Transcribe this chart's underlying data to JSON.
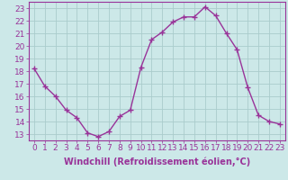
{
  "x": [
    0,
    1,
    2,
    3,
    4,
    5,
    6,
    7,
    8,
    9,
    10,
    11,
    12,
    13,
    14,
    15,
    16,
    17,
    18,
    19,
    20,
    21,
    22,
    23
  ],
  "y": [
    18.2,
    16.8,
    16.0,
    14.9,
    14.3,
    13.1,
    12.8,
    13.2,
    14.4,
    14.9,
    18.3,
    20.5,
    21.1,
    21.9,
    22.3,
    22.3,
    23.1,
    22.4,
    21.0,
    19.7,
    16.7,
    14.5,
    14.0,
    13.8
  ],
  "line_color": "#993399",
  "marker": "+",
  "marker_color": "#993399",
  "marker_size": 4,
  "xlabel": "Windchill (Refroidissement éolien,°C)",
  "xlabel_fontsize": 7,
  "xtick_labels": [
    "0",
    "1",
    "2",
    "3",
    "4",
    "5",
    "6",
    "7",
    "8",
    "9",
    "10",
    "11",
    "12",
    "13",
    "14",
    "15",
    "16",
    "17",
    "18",
    "19",
    "20",
    "21",
    "22",
    "23"
  ],
  "ytick_labels": [
    "13",
    "14",
    "15",
    "16",
    "17",
    "18",
    "19",
    "20",
    "21",
    "22",
    "23"
  ],
  "ytick_values": [
    13,
    14,
    15,
    16,
    17,
    18,
    19,
    20,
    21,
    22,
    23
  ],
  "ylim": [
    12.5,
    23.5
  ],
  "xlim": [
    -0.5,
    23.5
  ],
  "background_color": "#cce8e8",
  "grid_color": "#aacccc",
  "tick_fontsize": 6.5,
  "line_width": 1.0
}
